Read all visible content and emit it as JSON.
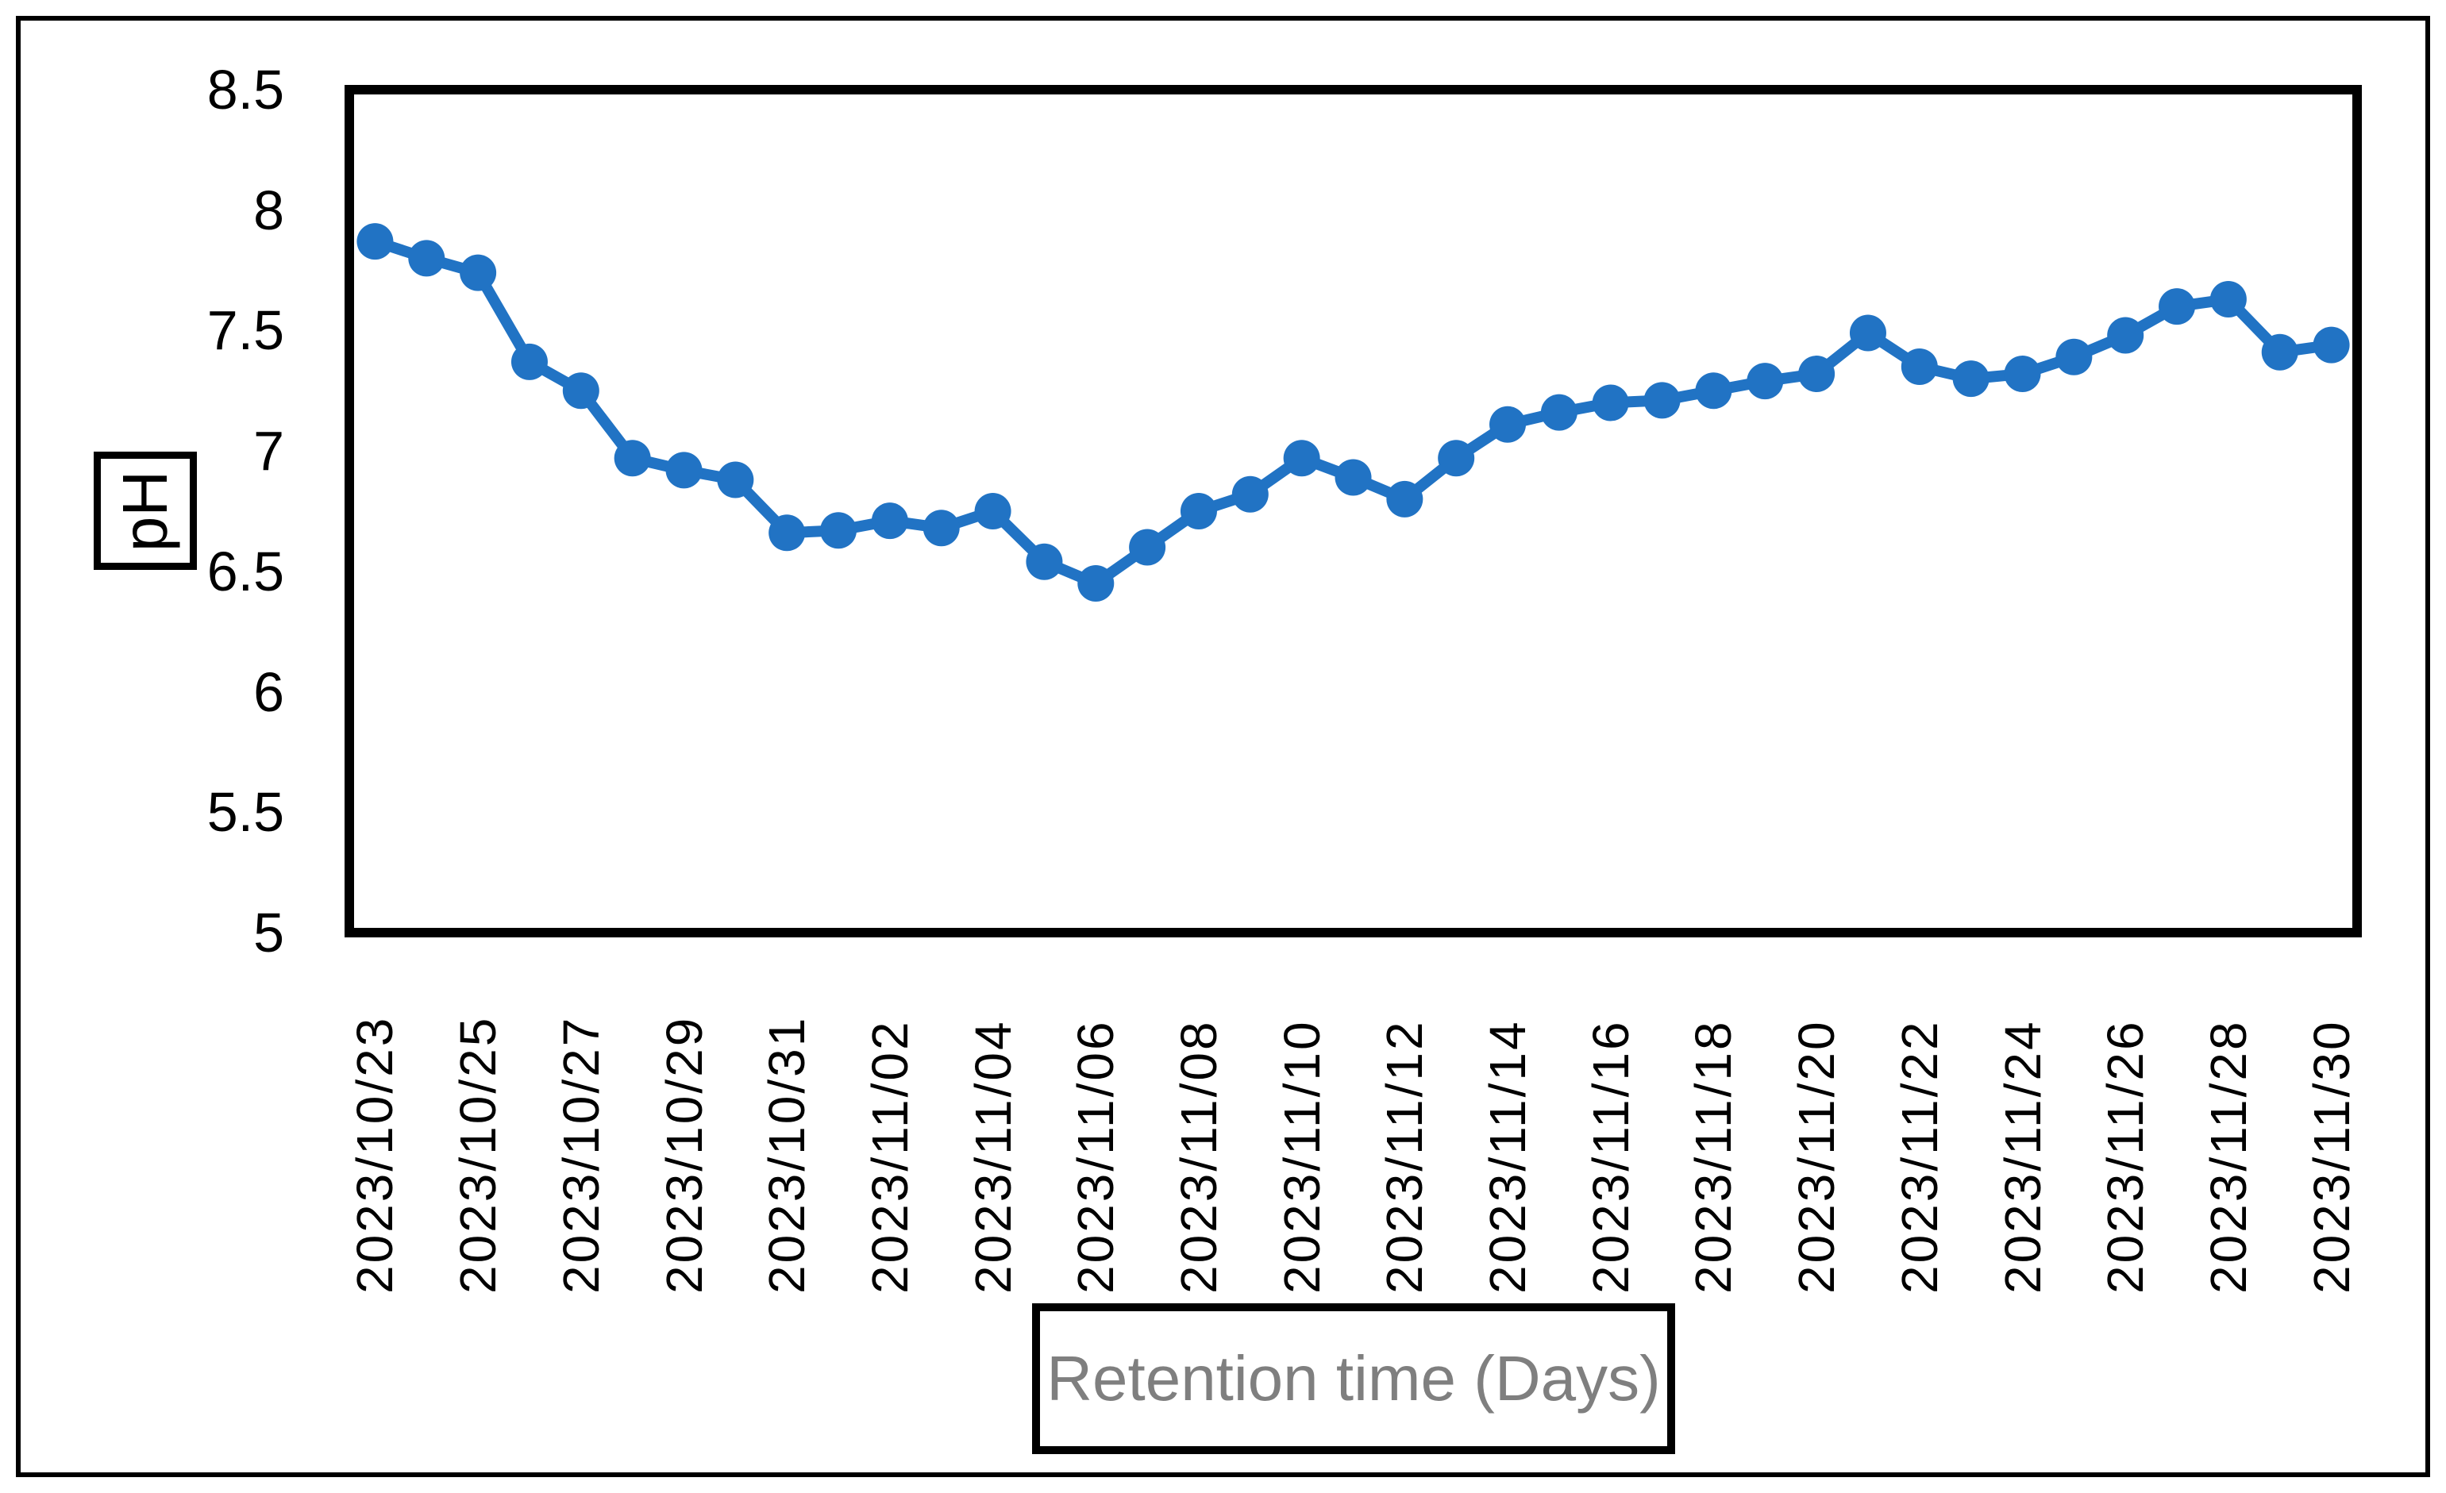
{
  "figure": {
    "background": "#FFFFFF",
    "border_color": "#000000"
  },
  "chart_data": {
    "type": "line",
    "title": "",
    "xlabel": "Retention time (Days)",
    "ylabel": "pH",
    "xlabel_color": "#7F7F7F",
    "ylabel_color": "#000000",
    "tick_color": "#000000",
    "grid": "off",
    "legend": "none",
    "marker": "circle",
    "ylim": [
      5,
      8.5
    ],
    "ytick_step": 0.5,
    "y_ticks": [
      "8.5",
      "8",
      "7.5",
      "7",
      "6.5",
      "6",
      "5.5",
      "5"
    ],
    "x_tick_every": 2,
    "categories": [
      "2023/10/23",
      "2023/10/24",
      "2023/10/25",
      "2023/10/26",
      "2023/10/27",
      "2023/10/28",
      "2023/10/29",
      "2023/10/30",
      "2023/10/31",
      "2023/11/01",
      "2023/11/02",
      "2023/11/03",
      "2023/11/04",
      "2023/11/05",
      "2023/11/06",
      "2023/11/07",
      "2023/11/08",
      "2023/11/09",
      "2023/11/10",
      "2023/11/11",
      "2023/11/12",
      "2023/11/13",
      "2023/11/14",
      "2023/11/15",
      "2023/11/16",
      "2023/11/17",
      "2023/11/18",
      "2023/11/19",
      "2023/11/20",
      "2023/11/21",
      "2023/11/22",
      "2023/11/23",
      "2023/11/24",
      "2023/11/25",
      "2023/11/26",
      "2023/11/27",
      "2023/11/28",
      "2023/11/29",
      "2023/11/30"
    ],
    "series": [
      {
        "name": "pH",
        "color": "#2173C4",
        "values": [
          7.87,
          7.8,
          7.74,
          7.37,
          7.25,
          6.97,
          6.92,
          6.88,
          6.66,
          6.67,
          6.71,
          6.68,
          6.75,
          6.54,
          6.45,
          6.6,
          6.75,
          6.82,
          6.97,
          6.89,
          6.8,
          6.97,
          7.11,
          7.16,
          7.2,
          7.21,
          7.25,
          7.29,
          7.32,
          7.49,
          7.35,
          7.3,
          7.32,
          7.39,
          7.48,
          7.6,
          7.63,
          7.41,
          7.44
        ]
      }
    ]
  }
}
